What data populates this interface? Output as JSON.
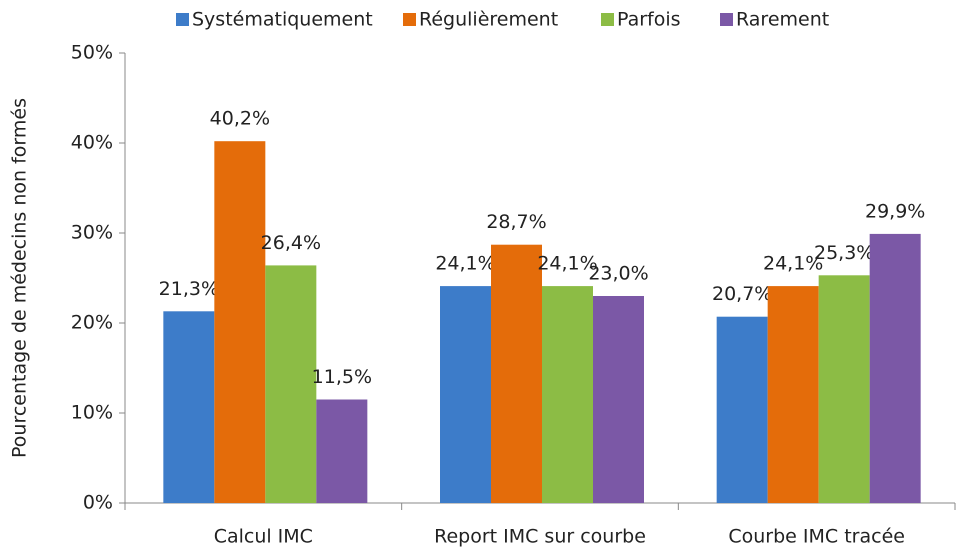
{
  "chart_data": {
    "type": "bar",
    "y_label": "Pourcentage de médecins non formés",
    "categories": [
      "Calcul  IMC",
      "Report IMC sur courbe",
      "Courbe IMC tracée"
    ],
    "series": [
      {
        "name": "Systématiquement",
        "color": "#3d7cc9",
        "values": [
          21.3,
          24.1,
          20.7
        ],
        "value_labels": [
          "21,3%",
          "24,1%",
          "20,7%"
        ]
      },
      {
        "name": "Régulièrement",
        "color": "#e46c0a",
        "values": [
          40.2,
          28.7,
          24.1
        ],
        "value_labels": [
          "40,2%",
          "28,7%",
          "24,1%"
        ]
      },
      {
        "name": "Parfois",
        "color": "#8cbc45",
        "values": [
          26.4,
          24.1,
          25.3
        ],
        "value_labels": [
          "26,4%",
          "24,1%",
          "25,3%"
        ]
      },
      {
        "name": "Rarement",
        "color": "#7b58a6",
        "values": [
          11.5,
          23.0,
          29.9
        ],
        "value_labels": [
          "11,5%",
          "23,0%",
          "29,9%"
        ]
      }
    ],
    "ylim": [
      0,
      50
    ],
    "yticks": [
      {
        "value": 0,
        "label": "0%"
      },
      {
        "value": 10,
        "label": "10%"
      },
      {
        "value": 20,
        "label": "20%"
      },
      {
        "value": 30,
        "label": "30%"
      },
      {
        "value": 40,
        "label": "40%"
      },
      {
        "value": 50,
        "label": "50%"
      }
    ],
    "legend": "top"
  }
}
